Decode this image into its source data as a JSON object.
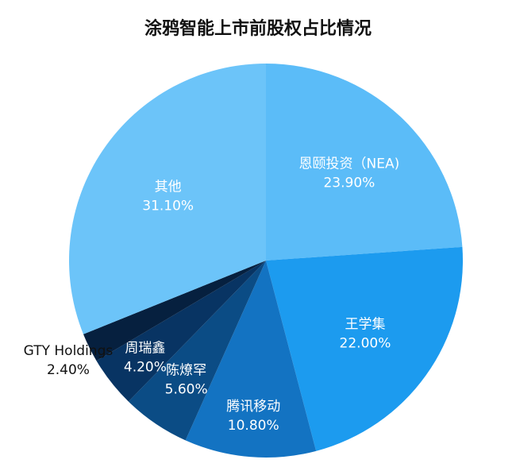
{
  "chart_data": {
    "type": "pie",
    "title": "涂鸦智能上市前股权占比情况",
    "slices": [
      {
        "label": "恩颐投资（NEA)",
        "value": 23.9,
        "value_label": "23.90%",
        "color": "#5BBCF8",
        "text_color": "#ffffff"
      },
      {
        "label": "王学集",
        "value": 22.0,
        "value_label": "22.00%",
        "color": "#1C9BEF",
        "text_color": "#ffffff"
      },
      {
        "label": "腾讯移动",
        "value": 10.8,
        "value_label": "10.80%",
        "color": "#1373C2",
        "text_color": "#ffffff"
      },
      {
        "label": "陈燎罕",
        "value": 5.6,
        "value_label": "5.60%",
        "color": "#0B4C85",
        "text_color": "#ffffff"
      },
      {
        "label": "周瑞鑫",
        "value": 4.2,
        "value_label": "4.20%",
        "color": "#083463",
        "text_color": "#ffffff"
      },
      {
        "label": "GTY Holdings",
        "value": 2.4,
        "value_label": "2.40%",
        "color": "#06203F",
        "text_color": "#111111"
      },
      {
        "label": "其他",
        "value": 31.1,
        "value_label": "31.10%",
        "color": "#6CC4F9",
        "text_color": "#ffffff"
      }
    ]
  }
}
